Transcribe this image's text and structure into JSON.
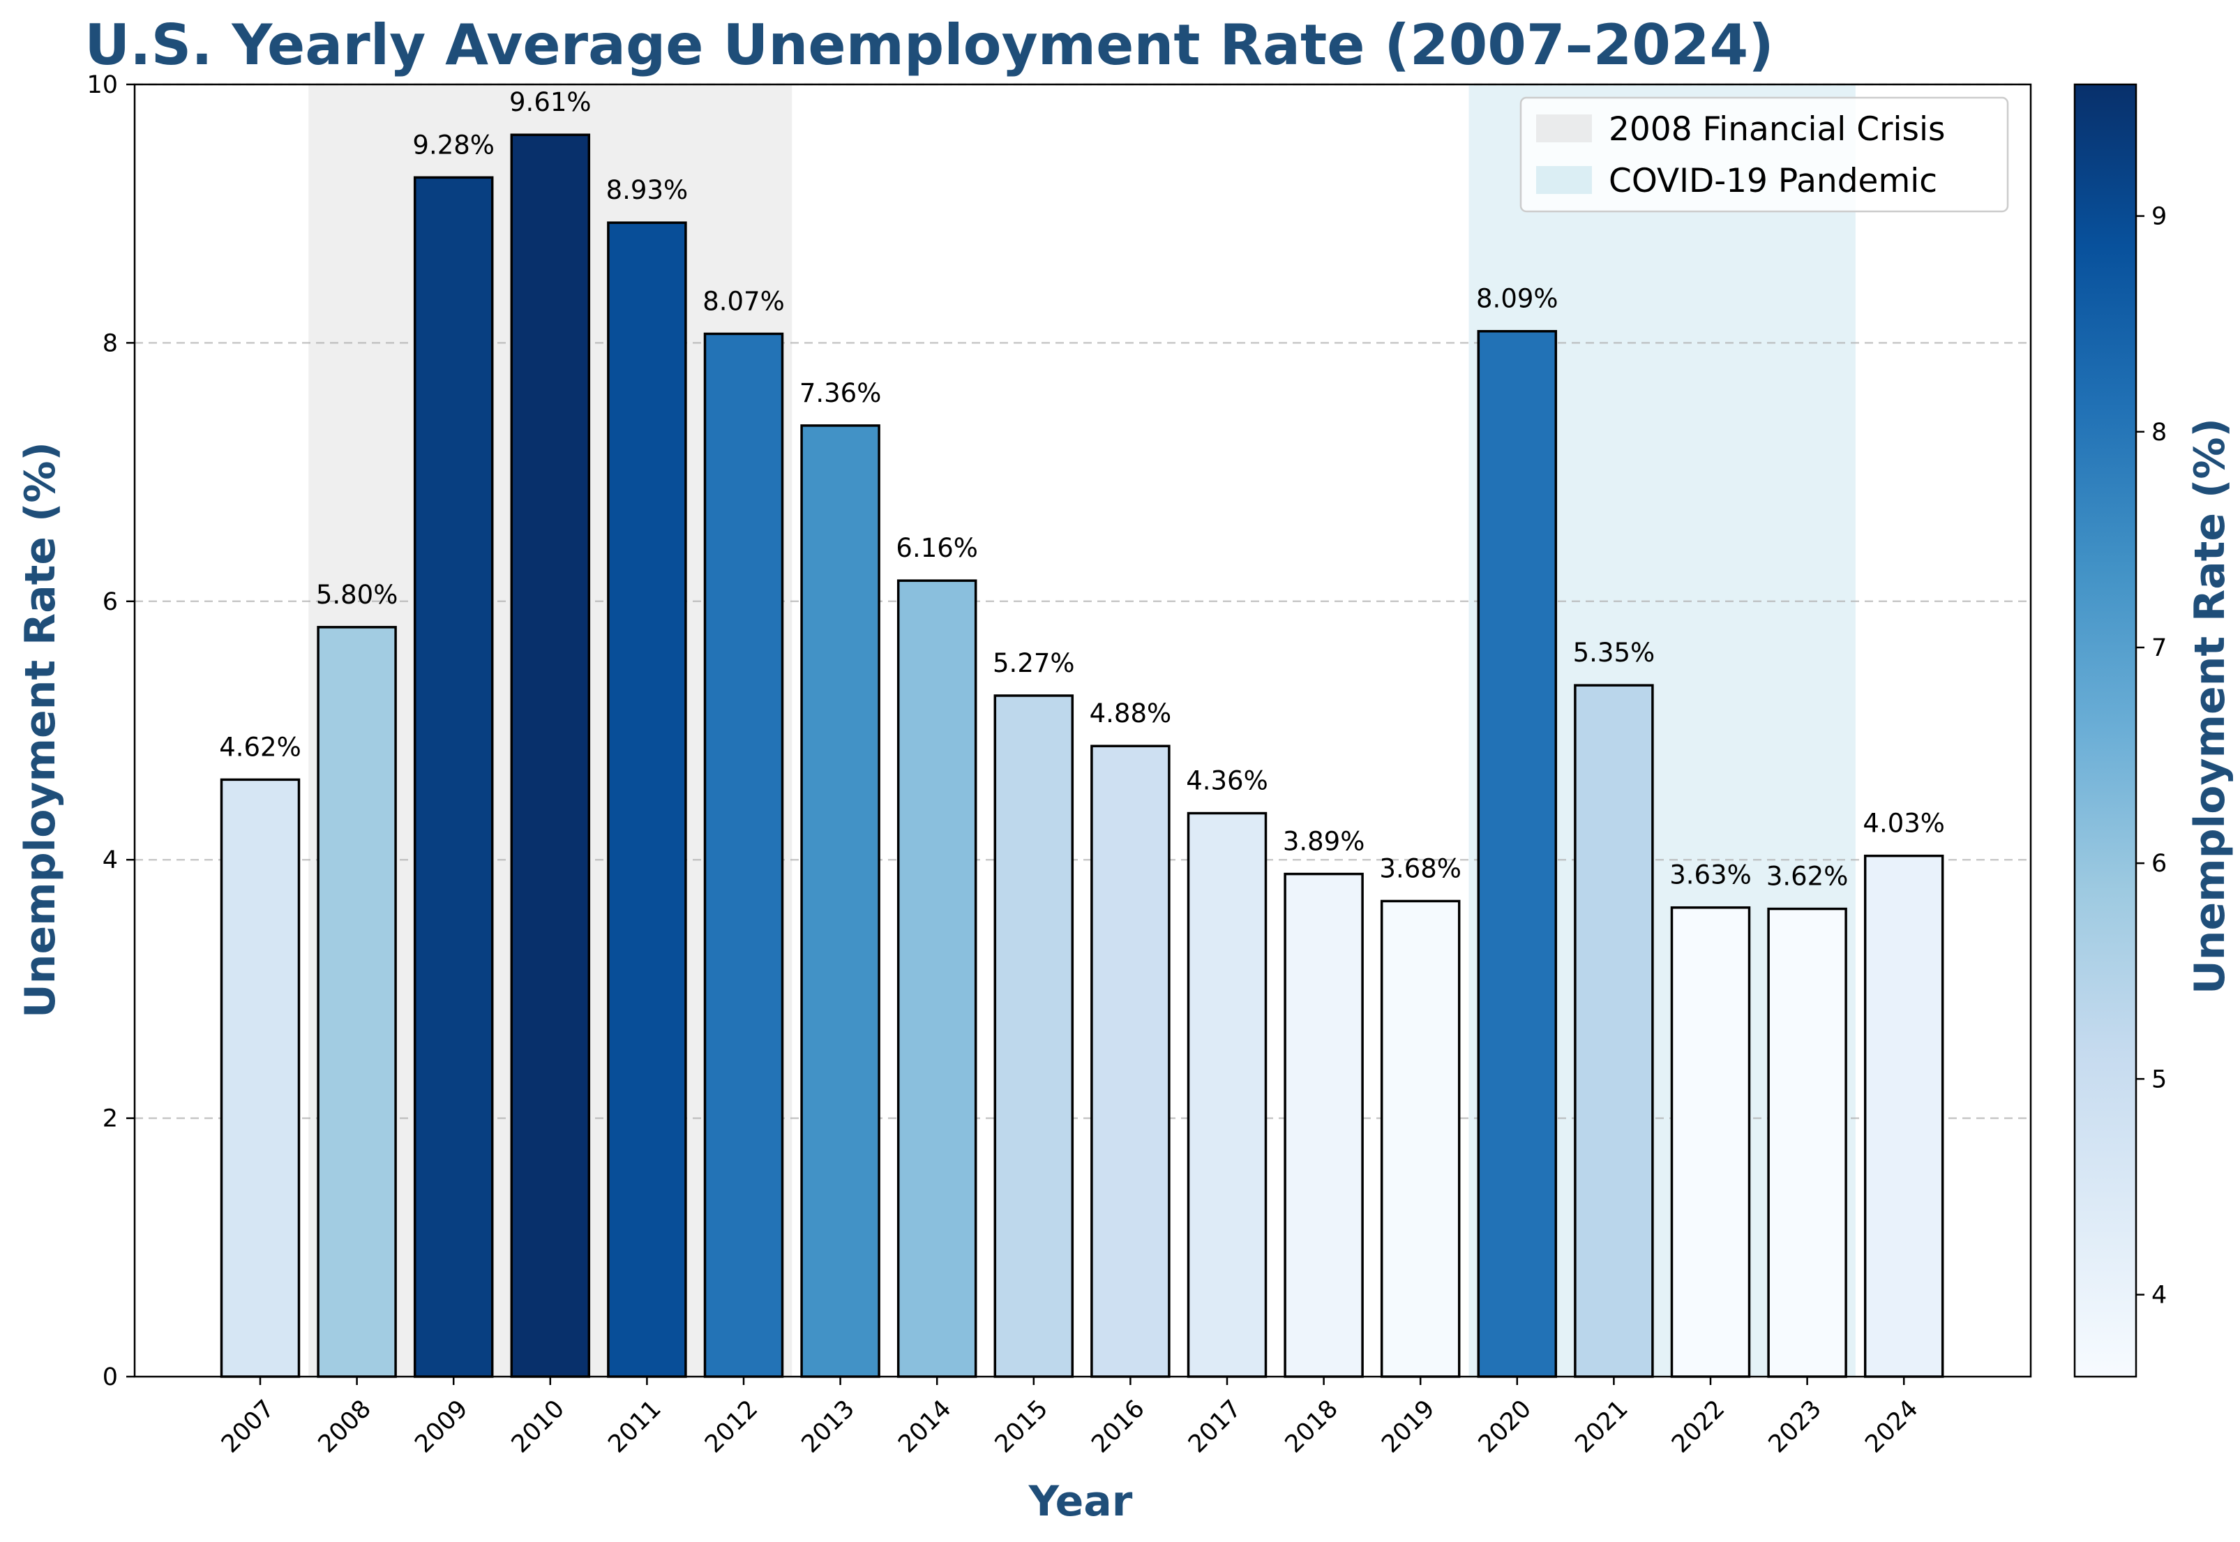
{
  "chart_data": {
    "type": "bar",
    "title": "U.S. Yearly Average Unemployment Rate (2007–2024)",
    "xlabel": "Year",
    "ylabel": "Unemployment Rate (%)",
    "ylim": [
      0,
      10
    ],
    "yticks": [
      "0",
      "2",
      "4",
      "6",
      "8",
      "10"
    ],
    "grid": "horizontal dashed",
    "categories": [
      "2007",
      "2008",
      "2009",
      "2010",
      "2011",
      "2012",
      "2013",
      "2014",
      "2015",
      "2016",
      "2017",
      "2018",
      "2019",
      "2020",
      "2021",
      "2022",
      "2023",
      "2024"
    ],
    "values": [
      4.62,
      5.8,
      9.28,
      9.61,
      8.93,
      8.07,
      7.36,
      6.16,
      5.27,
      4.88,
      4.36,
      3.89,
      3.68,
      8.09,
      5.35,
      3.63,
      3.62,
      4.03
    ],
    "value_labels": [
      "4.62%",
      "5.80%",
      "9.28%",
      "9.61%",
      "8.93%",
      "8.07%",
      "7.36%",
      "6.16%",
      "5.27%",
      "4.88%",
      "4.36%",
      "3.89%",
      "3.68%",
      "8.09%",
      "5.35%",
      "3.63%",
      "3.62%",
      "4.03%"
    ],
    "shaded_periods": [
      {
        "label": "2008 Financial Crisis",
        "from": 2007.5,
        "to": 2012.5,
        "color": "#d9d9d9"
      },
      {
        "label": "COVID-19 Pandemic",
        "from": 2019.5,
        "to": 2023.5,
        "color": "#add8e6"
      }
    ],
    "legend_position": "top-right",
    "colorbar": {
      "label": "Unemployment Rate (%)",
      "range": [
        3.62,
        9.61
      ],
      "ticks": [
        "4",
        "5",
        "6",
        "7",
        "8",
        "9"
      ],
      "colormap": "Blues"
    },
    "colors": {
      "title": "#1f4e79",
      "bar_edge": "#000000"
    }
  }
}
